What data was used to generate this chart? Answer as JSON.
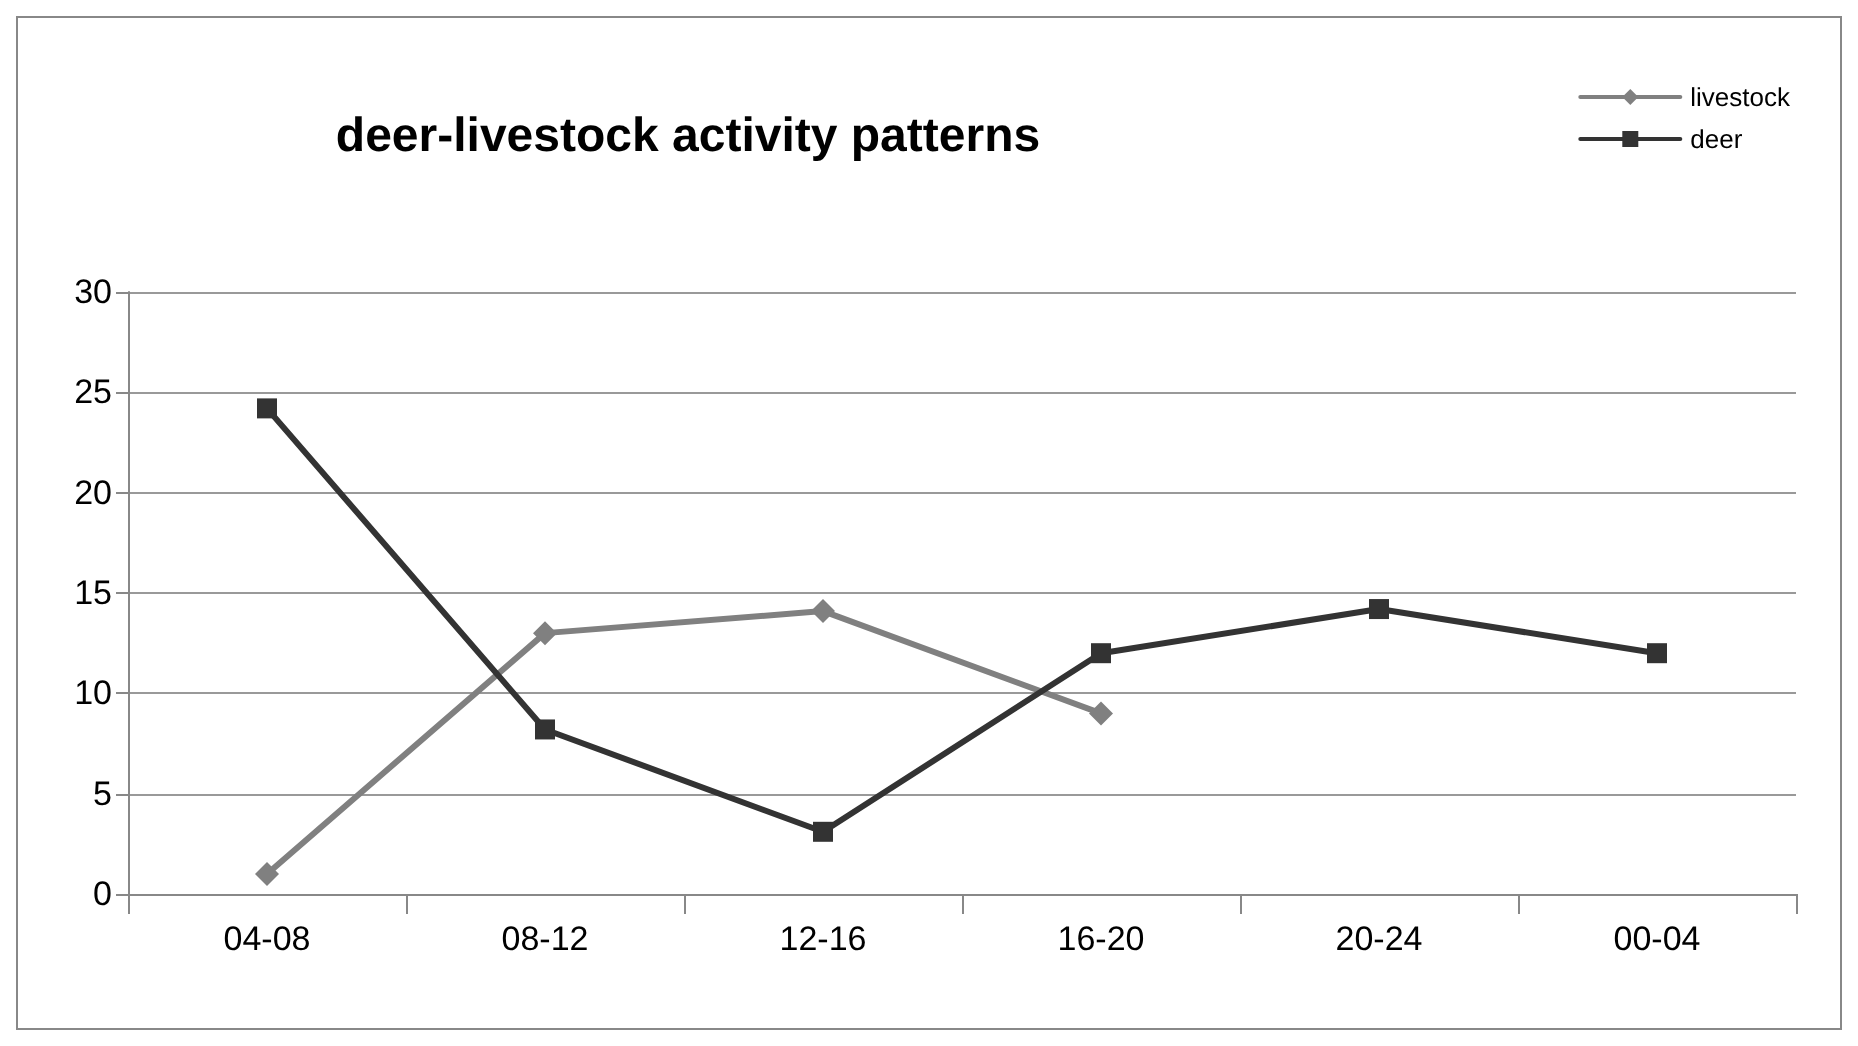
{
  "chart_data": {
    "type": "line",
    "title": "deer-livestock activity patterns",
    "categories": [
      "04-08",
      "08-12",
      "12-16",
      "16-20",
      "20-24",
      "00-04"
    ],
    "series": [
      {
        "name": "livestock",
        "color": "#808080",
        "marker": "diamond",
        "values": [
          1,
          13,
          14.1,
          9,
          null,
          null
        ]
      },
      {
        "name": "deer",
        "color": "#333333",
        "marker": "square",
        "values": [
          24.2,
          8.2,
          3.1,
          12,
          14.2,
          12
        ]
      }
    ],
    "ylim": [
      0,
      30
    ],
    "yticks": [
      0,
      5,
      10,
      15,
      20,
      25,
      30
    ],
    "grid": "y",
    "legend": "top right",
    "line_style": "solid"
  }
}
